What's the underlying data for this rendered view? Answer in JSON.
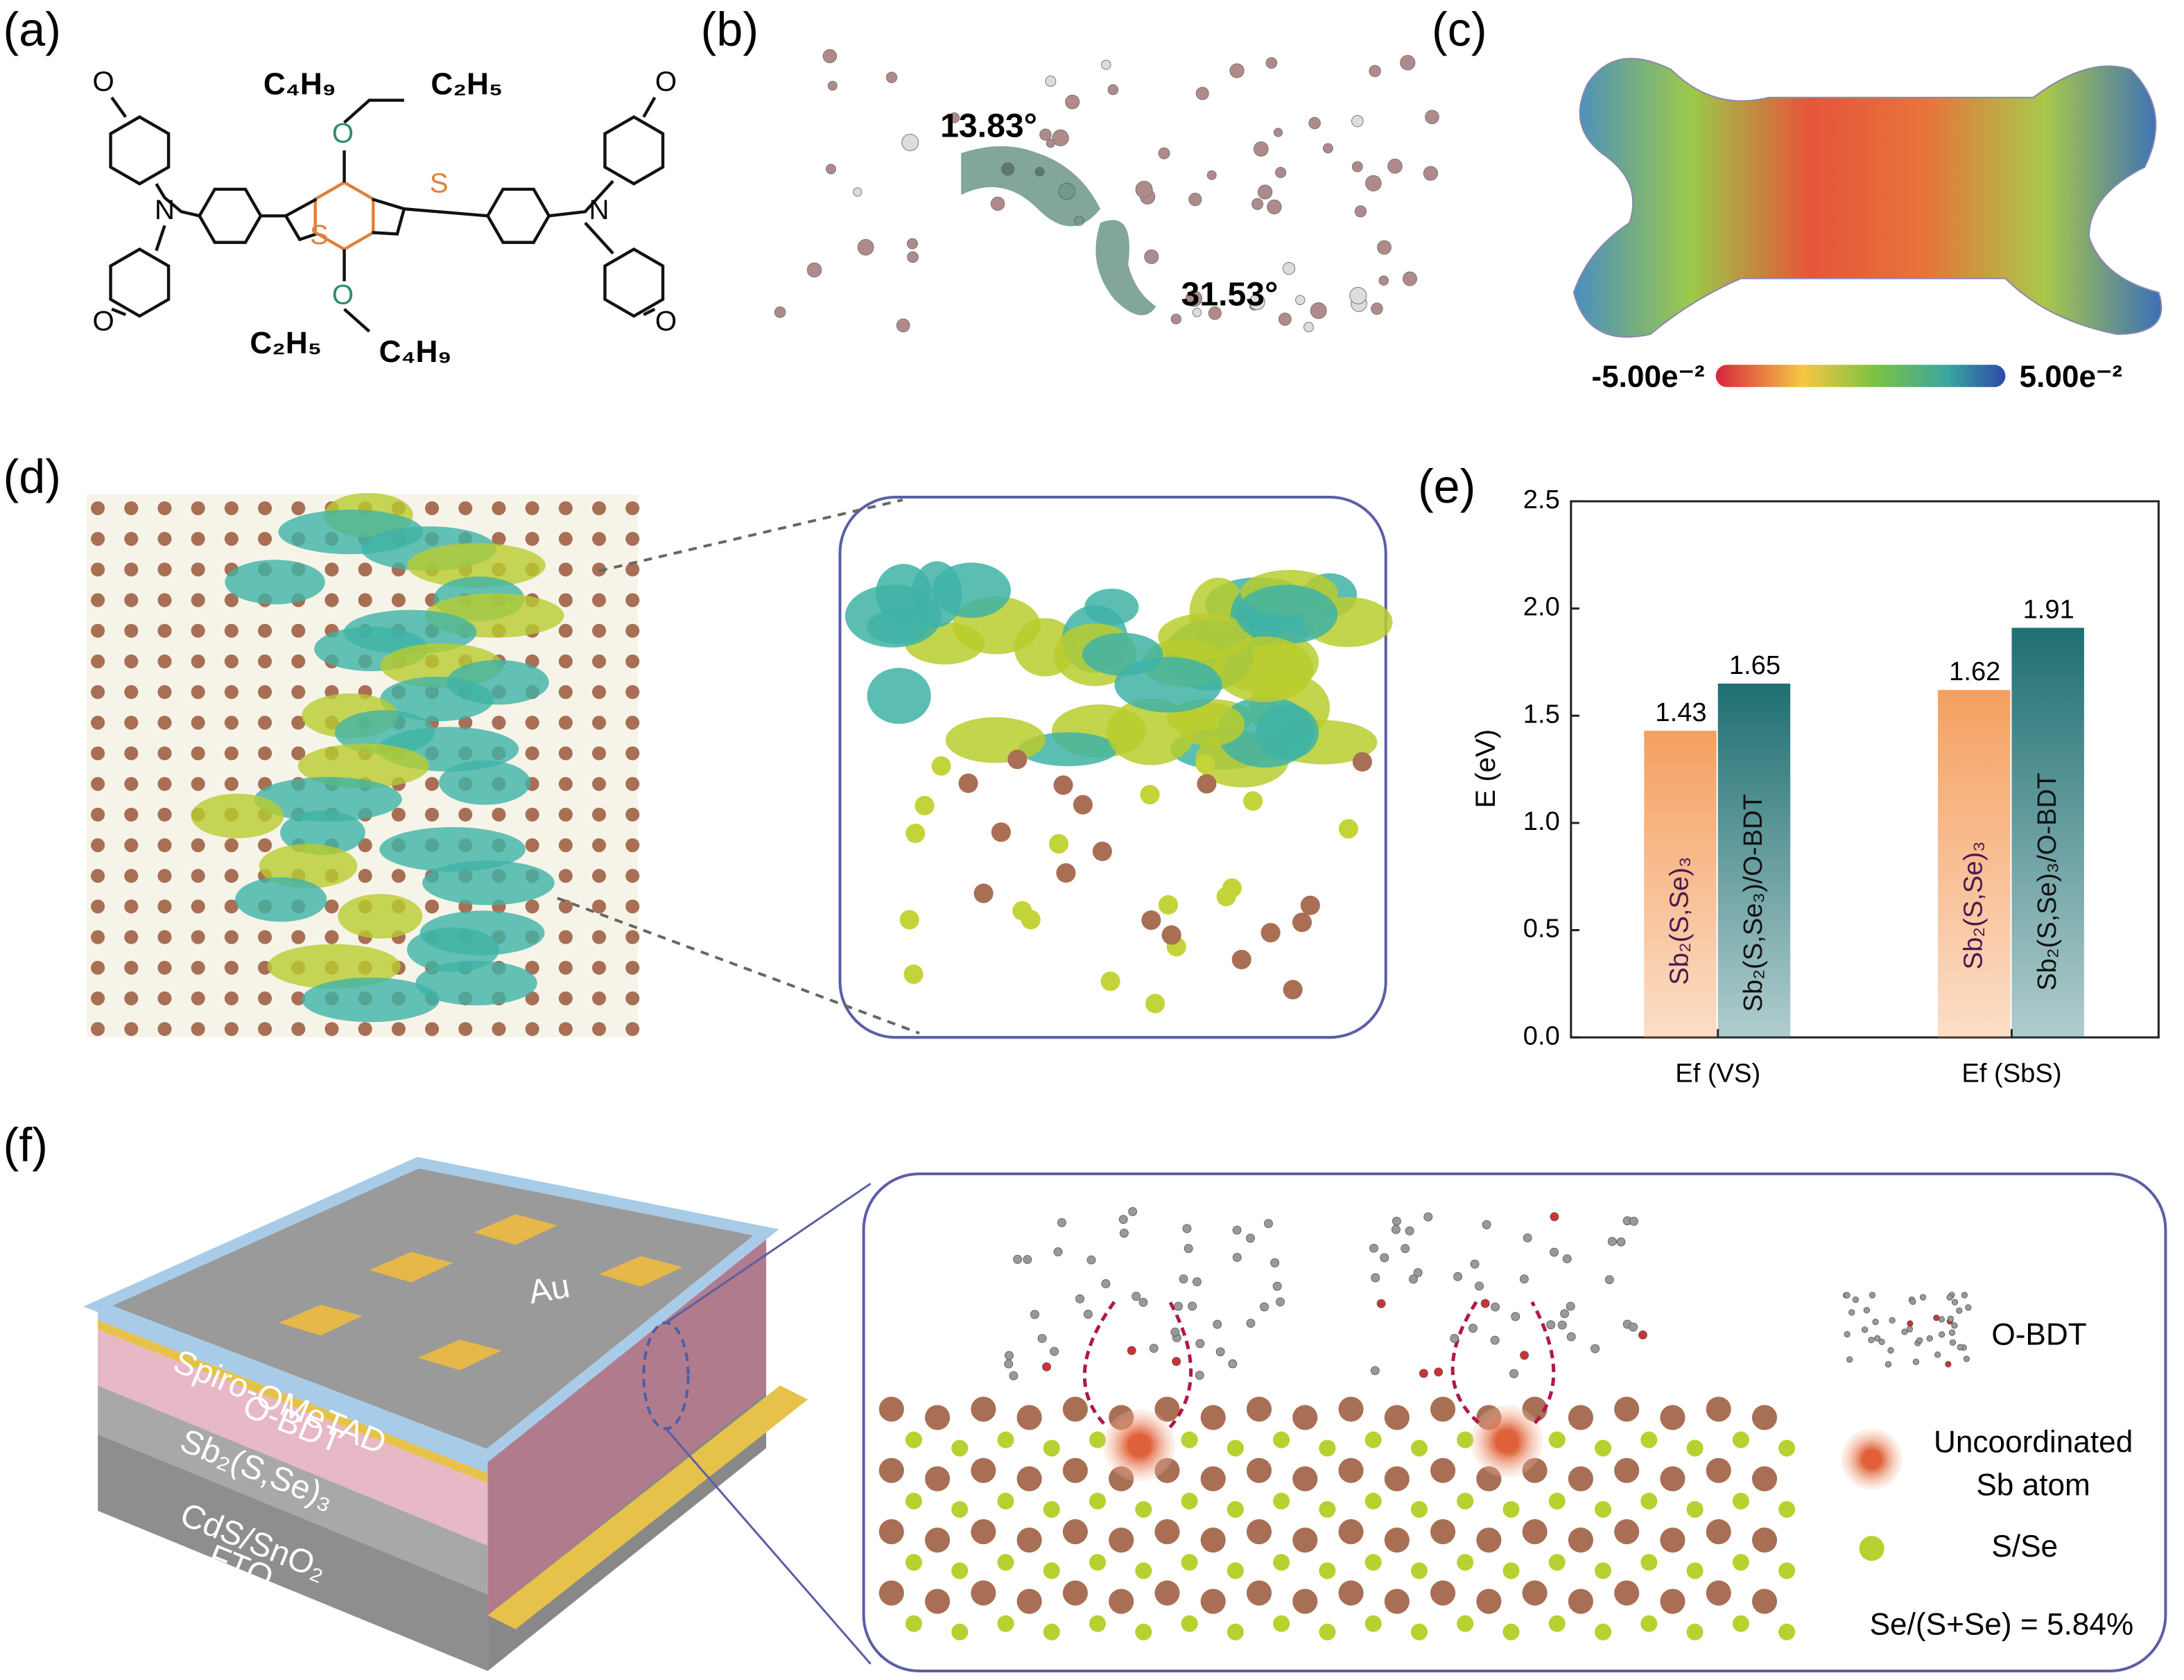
{
  "panel_labels": [
    "(a)",
    "(b)",
    "(c)",
    "(d)",
    "(e)",
    "(f)"
  ],
  "panel_a": {
    "top_chain": [
      "C₄H₉",
      "C₂H₅"
    ],
    "bottom_chain": [
      "C₂H₅",
      "C₄H₉"
    ],
    "oxygen": "O",
    "nitrogen": "N",
    "sulfur": "S"
  },
  "panel_b": {
    "angles": [
      "13.83°",
      "31.53°"
    ]
  },
  "panel_c": {
    "scale_min": "-5.00e⁻²",
    "scale_max": "5.00e⁻²"
  },
  "panel_f": {
    "layers": [
      "Au",
      "Spiro-OMeTAD",
      "O-BDT",
      "Sb₂(S,Se)₃",
      "CdS/SnO₂",
      "FTO"
    ],
    "legend_molecule": "O-BDT",
    "legend_sb": [
      "Uncoordinated",
      "Sb atom"
    ],
    "legend_sse": "S/Se",
    "ratio": "Se/(S+Se) = 5.84%"
  },
  "chart_data": {
    "type": "bar",
    "y_label": "E (eV)",
    "categories": [
      "Ef (VS)",
      "Ef (SbS)"
    ],
    "series": [
      {
        "color": "#f5a060",
        "values": [
          1.43,
          1.62
        ],
        "bar_labels": [
          "Sb₂(S,Se)₃",
          "Sb₂(S,Se)₃"
        ]
      },
      {
        "color": "#1f6f72",
        "values": [
          1.65,
          1.91
        ],
        "bar_labels": [
          "Sb₂(S,Se₃)/O-BDT",
          "Sb₂(S,Se)₃/O-BDT"
        ]
      }
    ],
    "ylim": [
      0,
      2.5
    ],
    "yticks": [
      {
        "value": 0,
        "label": "0.0"
      },
      0.5,
      {
        "value": 1,
        "label": "1.0"
      },
      1.5,
      {
        "value": 2,
        "label": "2.0"
      },
      2.5
    ]
  }
}
